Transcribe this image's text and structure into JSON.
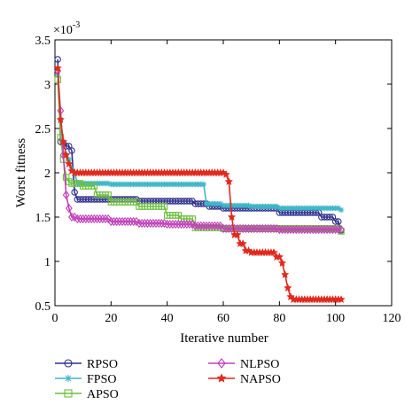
{
  "chart_data": {
    "type": "line",
    "xlabel": "Iterative number",
    "ylabel": "Worst fitness",
    "y_scale_label": "×10",
    "y_scale_exponent": "-3",
    "xlim": [
      0,
      120
    ],
    "ylim": [
      0.5,
      3.5
    ],
    "xticks": [
      "0",
      "20",
      "40",
      "60",
      "80",
      "100",
      "120"
    ],
    "yticks": [
      "0.5",
      "1",
      "1.5",
      "2",
      "2.5",
      "3",
      "3.5"
    ],
    "grid": false,
    "legend_placement": "bottom",
    "series": [
      {
        "name": "RPSO",
        "color": "#2e2f8c",
        "marker": "circle",
        "points": [
          [
            1,
            3.28
          ],
          [
            2,
            2.35
          ],
          [
            3,
            2.33
          ],
          [
            4,
            2.3
          ],
          [
            5,
            2.3
          ],
          [
            6,
            2.25
          ],
          [
            7,
            1.78
          ],
          [
            8,
            1.7
          ],
          [
            15,
            1.7
          ],
          [
            30,
            1.68
          ],
          [
            50,
            1.65
          ],
          [
            55,
            1.62
          ],
          [
            60,
            1.6
          ],
          [
            70,
            1.6
          ],
          [
            80,
            1.55
          ],
          [
            95,
            1.5
          ],
          [
            100,
            1.45
          ],
          [
            102,
            1.35
          ]
        ]
      },
      {
        "name": "FPSO",
        "color": "#3fb6c8",
        "marker": "asterisk",
        "points": [
          [
            1,
            3.1
          ],
          [
            2,
            2.6
          ],
          [
            3,
            2.35
          ],
          [
            4,
            2.2
          ],
          [
            5,
            2.15
          ],
          [
            6,
            2.05
          ],
          [
            7,
            2.0
          ],
          [
            8,
            1.88
          ],
          [
            20,
            1.87
          ],
          [
            40,
            1.87
          ],
          [
            53,
            1.87
          ],
          [
            54,
            1.65
          ],
          [
            60,
            1.63
          ],
          [
            70,
            1.62
          ],
          [
            80,
            1.6
          ],
          [
            95,
            1.6
          ],
          [
            102,
            1.58
          ]
        ]
      },
      {
        "name": "APSO",
        "color": "#6cbf3c",
        "marker": "square",
        "points": [
          [
            1,
            3.05
          ],
          [
            2,
            2.4
          ],
          [
            3,
            2.15
          ],
          [
            4,
            1.95
          ],
          [
            5,
            1.9
          ],
          [
            6,
            1.88
          ],
          [
            10,
            1.85
          ],
          [
            15,
            1.75
          ],
          [
            20,
            1.67
          ],
          [
            30,
            1.62
          ],
          [
            40,
            1.52
          ],
          [
            45,
            1.48
          ],
          [
            50,
            1.38
          ],
          [
            60,
            1.37
          ],
          [
            80,
            1.37
          ],
          [
            102,
            1.34
          ]
        ]
      },
      {
        "name": "NLPSO",
        "color": "#c040b8",
        "marker": "diamond",
        "points": [
          [
            1,
            3.15
          ],
          [
            2,
            2.7
          ],
          [
            3,
            2.2
          ],
          [
            4,
            1.75
          ],
          [
            5,
            1.6
          ],
          [
            6,
            1.5
          ],
          [
            8,
            1.48
          ],
          [
            20,
            1.45
          ],
          [
            30,
            1.43
          ],
          [
            40,
            1.42
          ],
          [
            50,
            1.4
          ],
          [
            60,
            1.37
          ],
          [
            80,
            1.36
          ],
          [
            102,
            1.36
          ]
        ]
      },
      {
        "name": "NAPSO",
        "color": "#e02a1f",
        "marker": "star",
        "points": [
          [
            1,
            3.18
          ],
          [
            2,
            2.6
          ],
          [
            3,
            2.35
          ],
          [
            4,
            2.2
          ],
          [
            5,
            2.1
          ],
          [
            6,
            2.02
          ],
          [
            7,
            2.0
          ],
          [
            20,
            2.0
          ],
          [
            40,
            2.0
          ],
          [
            60,
            2.0
          ],
          [
            61,
            1.98
          ],
          [
            62,
            1.9
          ],
          [
            63,
            1.5
          ],
          [
            64,
            1.3
          ],
          [
            66,
            1.2
          ],
          [
            68,
            1.12
          ],
          [
            70,
            1.1
          ],
          [
            76,
            1.1
          ],
          [
            79,
            1.05
          ],
          [
            81,
            0.98
          ],
          [
            82,
            0.85
          ],
          [
            83,
            0.7
          ],
          [
            84,
            0.6
          ],
          [
            85,
            0.57
          ],
          [
            102,
            0.57
          ]
        ]
      }
    ]
  }
}
